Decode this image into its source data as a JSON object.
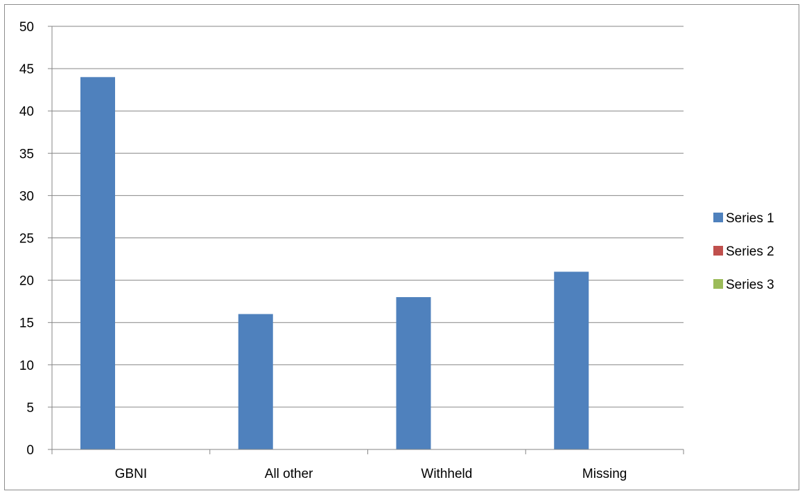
{
  "chart_data": {
    "type": "bar",
    "title": "",
    "xlabel": "",
    "ylabel": "",
    "categories": [
      "GBNI",
      "All other",
      "Withheld",
      "Missing"
    ],
    "series": [
      {
        "name": "Series 1",
        "color": "#4f81bd",
        "values": [
          44,
          16,
          18,
          21
        ]
      },
      {
        "name": "Series 2",
        "color": "#c0504d",
        "values": [
          0,
          0,
          0,
          0
        ]
      },
      {
        "name": "Series 3",
        "color": "#9bbb59",
        "values": [
          0,
          0,
          0,
          0
        ]
      }
    ],
    "ylim": [
      0,
      50
    ],
    "yticks": [
      0,
      5,
      10,
      15,
      20,
      25,
      30,
      35,
      40,
      45,
      50
    ],
    "grid": true,
    "legend_position": "right"
  }
}
